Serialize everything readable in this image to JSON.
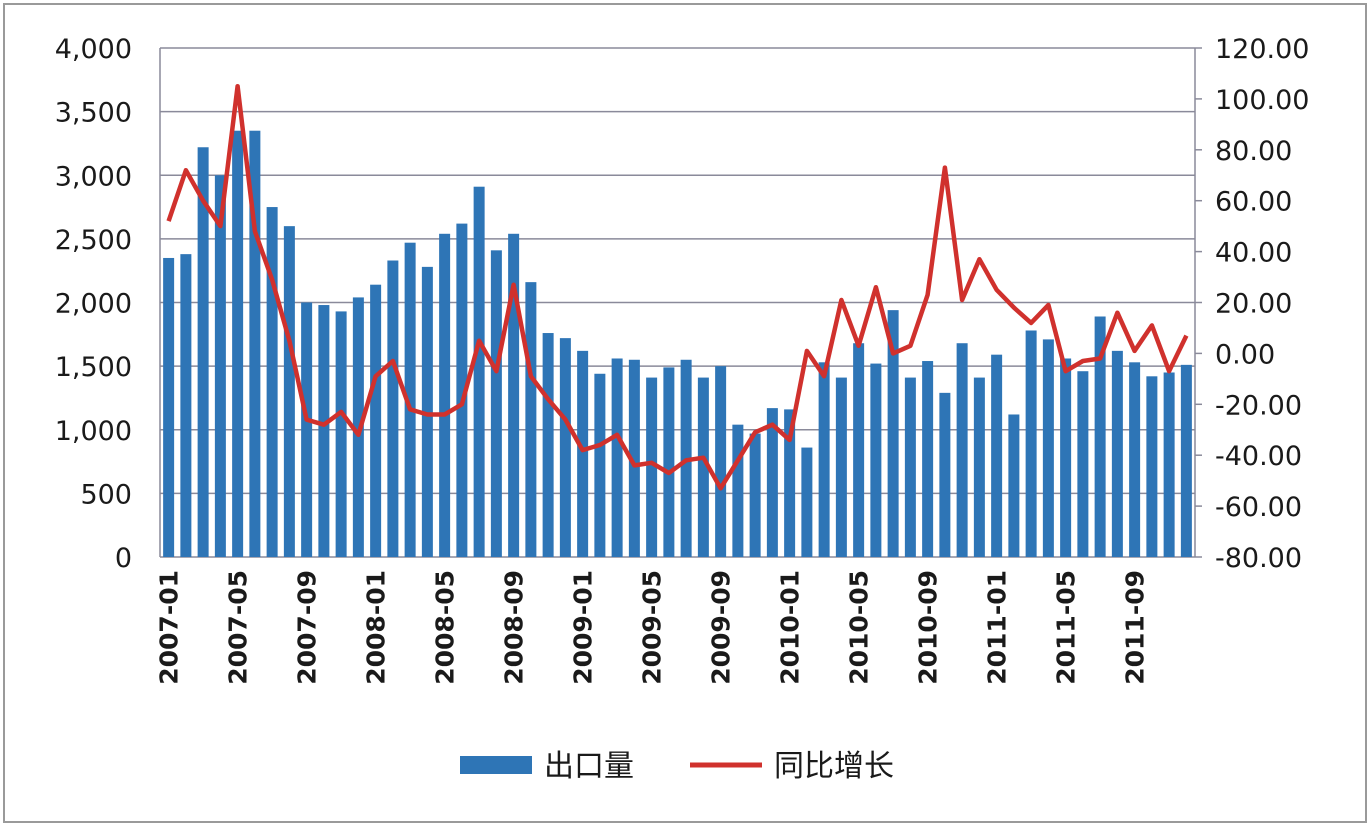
{
  "chart_data": {
    "type": "bar-line",
    "categories": [
      "2007-01",
      null,
      null,
      null,
      "2007-05",
      null,
      null,
      null,
      "2007-09",
      null,
      null,
      null,
      "2008-01",
      null,
      null,
      null,
      "2008-05",
      null,
      null,
      null,
      "2008-09",
      null,
      null,
      null,
      "2009-01",
      null,
      null,
      null,
      "2009-05",
      null,
      null,
      null,
      "2009-09",
      null,
      null,
      null,
      "2010-01",
      null,
      null,
      null,
      "2010-05",
      null,
      null,
      null,
      "2010-09",
      null,
      null,
      null,
      "2011-01",
      null,
      null,
      null,
      "2011-05",
      null,
      null,
      null,
      "2011-09",
      null,
      null,
      null
    ],
    "series": [
      {
        "name": "出口量",
        "color": "#2e75b6",
        "type": "bar",
        "values": [
          2350,
          2380,
          3220,
          3000,
          3350,
          3350,
          2750,
          2600,
          2000,
          1980,
          1930,
          2040,
          2140,
          2330,
          2470,
          2280,
          2540,
          2620,
          2910,
          2410,
          2540,
          2160,
          1760,
          1720,
          1620,
          1440,
          1560,
          1550,
          1410,
          1490,
          1550,
          1410,
          1500,
          1040,
          970,
          1170,
          1160,
          860,
          1530,
          1410,
          1680,
          1520,
          1940,
          1410,
          1540,
          1290,
          1680,
          1410,
          1590,
          1120,
          1780,
          1710,
          1560,
          1460,
          1890,
          1620,
          1530,
          1420,
          1450,
          1510
        ]
      },
      {
        "name": "同比增长",
        "color": "#d0312d",
        "type": "line",
        "axis": "y2",
        "values": [
          52,
          72,
          60,
          50,
          105,
          48,
          29,
          5,
          -26,
          -28,
          -23,
          -32,
          -9,
          -3,
          -22,
          -24,
          -24,
          -20,
          5,
          -7,
          27,
          -9,
          -18,
          -26,
          -38,
          -36,
          -32,
          -44,
          -43,
          -47,
          -42,
          -41,
          -53,
          -42,
          -31,
          -28,
          -34,
          1,
          -9,
          21,
          3,
          26,
          0,
          3,
          23,
          73,
          21,
          37,
          25,
          18,
          12,
          19,
          -7,
          -3,
          -2,
          16,
          1,
          11,
          -7,
          7
        ]
      }
    ],
    "ylim": [
      0,
      4000
    ],
    "yticks": [
      0,
      {
        "value": 500,
        "label": "500"
      },
      {
        "value": 1000,
        "label": "1,000"
      },
      {
        "value": 1500,
        "label": "1,500"
      },
      {
        "value": 2000,
        "label": "2,000"
      },
      {
        "value": 2500,
        "label": "2,500"
      },
      {
        "value": 3000,
        "label": "3,000"
      },
      {
        "value": 3500,
        "label": "3,500"
      },
      {
        "value": 4000,
        "label": "4,000"
      }
    ],
    "y2lim": [
      -80,
      120
    ],
    "y2ticks": [
      {
        "value": -80,
        "label": "-80.00"
      },
      {
        "value": -60,
        "label": "-60.00"
      },
      {
        "value": -40,
        "label": "-40.00"
      },
      {
        "value": -20,
        "label": "-20.00"
      },
      {
        "value": 0,
        "label": "0.00"
      },
      {
        "value": 20,
        "label": "20.00"
      },
      {
        "value": 40,
        "label": "40.00"
      },
      {
        "value": 60,
        "label": "60.00"
      },
      {
        "value": 80,
        "label": "80.00"
      },
      {
        "value": 100,
        "label": "100.00"
      },
      {
        "value": 120,
        "label": "120.00"
      }
    ],
    "grid": true
  }
}
